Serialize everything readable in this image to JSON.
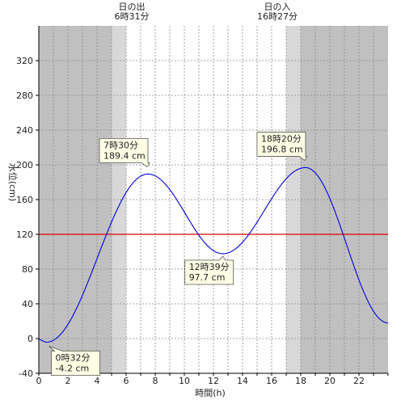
{
  "chart_data": {
    "type": "line",
    "xlabel": "時間(h)",
    "ylabel": "水位(cm)",
    "xlim": [
      0,
      24
    ],
    "ylim": [
      -40,
      360
    ],
    "xticks": [
      0,
      2,
      4,
      6,
      8,
      10,
      12,
      14,
      16,
      18,
      20,
      22
    ],
    "yticks": [
      -40,
      0,
      40,
      80,
      120,
      160,
      200,
      240,
      280,
      320
    ],
    "grid": true,
    "reference_line": {
      "y": 120,
      "color": "#e00000"
    },
    "series_color": "#0000dd",
    "shading": {
      "night_color": "#c0c0c0",
      "twilight_color": "#d8d8d8",
      "day_color": "#ffffff",
      "night_before": [
        0,
        5.0
      ],
      "dawn_twilight": [
        5.0,
        6.0
      ],
      "dusk_twilight": [
        17.0,
        18.0
      ],
      "night_after": [
        18.0,
        24
      ]
    },
    "sunrise": {
      "title": "日の出",
      "time": "6時31分"
    },
    "sunset": {
      "title": "日の入",
      "time": "16時27分"
    },
    "extrema": [
      {
        "x": 0.53,
        "y": -4.2,
        "time": "0時32分",
        "value": "-4.2 cm",
        "kind": "low"
      },
      {
        "x": 7.5,
        "y": 189.4,
        "time": "7時30分",
        "value": "189.4 cm",
        "kind": "high"
      },
      {
        "x": 12.65,
        "y": 97.7,
        "time": "12時39分",
        "value": "97.7 cm",
        "kind": "low"
      },
      {
        "x": 18.33,
        "y": 196.8,
        "time": "18時20分",
        "value": "196.8 cm",
        "kind": "high"
      }
    ],
    "series": [
      {
        "x": [
          0,
          0.53,
          7.5,
          12.65,
          18.33,
          24
        ],
        "y": [
          -1,
          -4.2,
          189.4,
          97.7,
          196.8,
          18
        ]
      }
    ]
  }
}
